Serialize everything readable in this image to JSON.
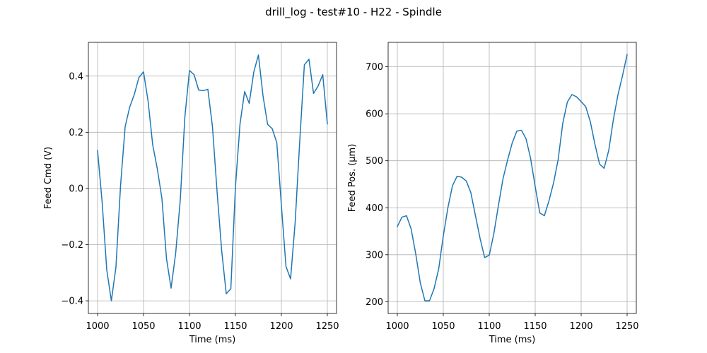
{
  "figure": {
    "suptitle": "drill_log - test#10 - H22 - Spindle"
  },
  "chart_data": [
    {
      "type": "line",
      "title": "",
      "xlabel": "Time (ms)",
      "ylabel": "Feed Cmd (V)",
      "grid": true,
      "xlim": [
        990,
        1260
      ],
      "ylim": [
        -0.445,
        0.52
      ],
      "xticks": [
        1000,
        1050,
        1100,
        1150,
        1200,
        1250
      ],
      "yticks": [
        -0.4,
        -0.2,
        0.0,
        0.2,
        0.4
      ],
      "ytick_labels": [
        "−0.4",
        "−0.2",
        "0.0",
        "0.2",
        "0.4"
      ],
      "color": "#1f77b4",
      "x": [
        1000,
        1005,
        1010,
        1015,
        1020,
        1025,
        1030,
        1035,
        1040,
        1045,
        1050,
        1055,
        1060,
        1065,
        1070,
        1075,
        1080,
        1085,
        1090,
        1095,
        1100,
        1105,
        1110,
        1115,
        1120,
        1125,
        1130,
        1135,
        1140,
        1145,
        1150,
        1155,
        1160,
        1165,
        1170,
        1175,
        1180,
        1185,
        1190,
        1195,
        1200,
        1205,
        1210,
        1215,
        1220,
        1225,
        1230,
        1235,
        1240,
        1245,
        1250
      ],
      "y": [
        0.135,
        -0.05,
        -0.29,
        -0.4,
        -0.28,
        0.01,
        0.22,
        0.29,
        0.335,
        0.395,
        0.415,
        0.31,
        0.155,
        0.07,
        -0.035,
        -0.25,
        -0.355,
        -0.23,
        -0.04,
        0.255,
        0.42,
        0.405,
        0.35,
        0.348,
        0.353,
        0.22,
        -0.01,
        -0.22,
        -0.375,
        -0.357,
        0.005,
        0.23,
        0.345,
        0.303,
        0.415,
        0.475,
        0.33,
        0.228,
        0.213,
        0.163,
        -0.06,
        -0.278,
        -0.322,
        -0.12,
        0.17,
        0.44,
        0.46,
        0.338,
        0.365,
        0.405,
        0.23
      ]
    },
    {
      "type": "line",
      "title": "",
      "xlabel": "Time (ms)",
      "ylabel": "Feed Pos. (µm)",
      "grid": true,
      "xlim": [
        990,
        1260
      ],
      "ylim": [
        175,
        752
      ],
      "xticks": [
        1000,
        1050,
        1100,
        1150,
        1200,
        1250
      ],
      "yticks": [
        200,
        300,
        400,
        500,
        600,
        700
      ],
      "ytick_labels": [
        "200",
        "300",
        "400",
        "500",
        "600",
        "700"
      ],
      "color": "#1f77b4",
      "x": [
        1000,
        1005,
        1010,
        1015,
        1020,
        1025,
        1030,
        1035,
        1040,
        1045,
        1050,
        1055,
        1060,
        1065,
        1070,
        1075,
        1080,
        1085,
        1090,
        1095,
        1100,
        1105,
        1110,
        1115,
        1120,
        1125,
        1130,
        1135,
        1140,
        1145,
        1150,
        1155,
        1160,
        1165,
        1170,
        1175,
        1180,
        1185,
        1190,
        1195,
        1200,
        1205,
        1210,
        1215,
        1220,
        1225,
        1230,
        1235,
        1240,
        1245,
        1250
      ],
      "y": [
        360,
        380,
        383,
        355,
        302,
        240,
        202,
        202,
        228,
        270,
        340,
        400,
        447,
        467,
        465,
        457,
        432,
        383,
        335,
        294,
        299,
        345,
        405,
        462,
        502,
        538,
        563,
        565,
        547,
        505,
        445,
        389,
        383,
        415,
        453,
        503,
        580,
        625,
        641,
        636,
        626,
        615,
        583,
        535,
        493,
        484,
        522,
        587,
        640,
        681,
        726
      ]
    }
  ]
}
